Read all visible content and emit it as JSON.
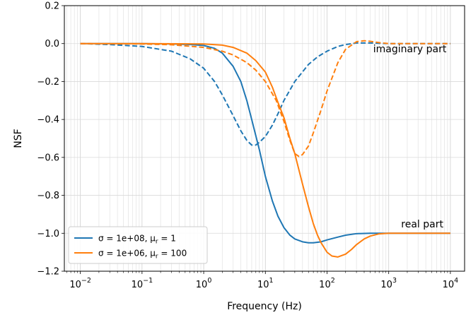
{
  "chart_data": {
    "type": "line",
    "xscale": "log",
    "xlim": [
      0.0055,
      17000
    ],
    "ylim": [
      -1.2,
      0.2
    ],
    "xlabel": "Frequency (Hz)",
    "ylabel": "NSF",
    "grid": true,
    "legend_position": "bottom-left",
    "x_ticks": [
      {
        "value": 0.01,
        "base": "10",
        "exp": "−2"
      },
      {
        "value": 0.1,
        "base": "10",
        "exp": "−1"
      },
      {
        "value": 1,
        "base": "10",
        "exp": "0"
      },
      {
        "value": 10,
        "base": "10",
        "exp": "1"
      },
      {
        "value": 100,
        "base": "10",
        "exp": "2"
      },
      {
        "value": 1000,
        "base": "10",
        "exp": "3"
      },
      {
        "value": 10000,
        "base": "10",
        "exp": "4"
      }
    ],
    "y_ticks": [
      {
        "value": 0.2,
        "label": "0.2"
      },
      {
        "value": 0.0,
        "label": "0.0"
      },
      {
        "value": -0.2,
        "label": "−0.2"
      },
      {
        "value": -0.4,
        "label": "−0.4"
      },
      {
        "value": -0.6,
        "label": "−0.6"
      },
      {
        "value": -0.8,
        "label": "−0.8"
      },
      {
        "value": -1.0,
        "label": "−1.0"
      },
      {
        "value": -1.2,
        "label": "−1.2"
      }
    ],
    "annotations": [
      {
        "text": "imaginary part",
        "x": 2200,
        "y": -0.045
      },
      {
        "text": "real part",
        "x": 3500,
        "y": -0.97
      }
    ],
    "series": [
      {
        "name_prefix": "σ = 1e+08, μ",
        "name_sub": "r",
        "name_suffix": " = 1",
        "color": "#1f77b4",
        "real": {
          "style": "solid",
          "x": [
            0.01,
            0.1,
            0.3,
            0.6,
            1,
            1.5,
            2,
            3,
            4,
            5,
            6,
            8,
            10,
            13,
            16,
            20,
            25,
            30,
            40,
            50,
            60,
            80,
            100,
            150,
            200,
            300,
            500,
            1000,
            10000
          ],
          "y": [
            0.0,
            0.0,
            -0.002,
            -0.005,
            -0.01,
            -0.025,
            -0.05,
            -0.12,
            -0.2,
            -0.3,
            -0.4,
            -0.56,
            -0.7,
            -0.83,
            -0.91,
            -0.97,
            -1.01,
            -1.03,
            -1.045,
            -1.05,
            -1.05,
            -1.045,
            -1.035,
            -1.02,
            -1.01,
            -1.002,
            -1.0,
            -1.0,
            -1.0
          ]
        },
        "imag": {
          "style": "dashed",
          "x": [
            0.01,
            0.03,
            0.1,
            0.3,
            0.6,
            1,
            1.5,
            2,
            3,
            4,
            5,
            6,
            7,
            8,
            10,
            13,
            16,
            20,
            30,
            50,
            70,
            100,
            150,
            200,
            300,
            500,
            1000,
            10000
          ],
          "y": [
            0.0,
            -0.005,
            -0.015,
            -0.04,
            -0.08,
            -0.13,
            -0.2,
            -0.27,
            -0.38,
            -0.46,
            -0.51,
            -0.535,
            -0.535,
            -0.52,
            -0.49,
            -0.43,
            -0.37,
            -0.3,
            -0.2,
            -0.11,
            -0.07,
            -0.04,
            -0.015,
            -0.005,
            0.003,
            0.003,
            0.0,
            0.0
          ]
        }
      },
      {
        "name_prefix": "σ = 1e+06, μ",
        "name_sub": "r",
        "name_suffix": " = 100",
        "color": "#ff7f0e",
        "real": {
          "style": "solid",
          "x": [
            0.01,
            0.1,
            1,
            2,
            3,
            5,
            7,
            10,
            13,
            16,
            20,
            25,
            30,
            40,
            50,
            60,
            70,
            80,
            100,
            120,
            150,
            200,
            250,
            300,
            400,
            500,
            700,
            1000,
            10000
          ],
          "y": [
            0.0,
            0.0,
            -0.002,
            -0.008,
            -0.02,
            -0.05,
            -0.09,
            -0.15,
            -0.23,
            -0.31,
            -0.39,
            -0.5,
            -0.58,
            -0.74,
            -0.86,
            -0.95,
            -1.01,
            -1.05,
            -1.1,
            -1.12,
            -1.125,
            -1.11,
            -1.085,
            -1.06,
            -1.03,
            -1.015,
            -1.003,
            -1.0,
            -1.0
          ]
        },
        "imag": {
          "style": "dashed",
          "x": [
            0.01,
            0.1,
            0.3,
            1,
            2,
            3,
            5,
            7,
            10,
            15,
            20,
            25,
            30,
            35,
            40,
            50,
            60,
            80,
            100,
            150,
            200,
            300,
            400,
            500,
            700,
            1000,
            10000
          ],
          "y": [
            0.0,
            -0.002,
            -0.006,
            -0.02,
            -0.04,
            -0.06,
            -0.1,
            -0.14,
            -0.2,
            -0.3,
            -0.41,
            -0.51,
            -0.58,
            -0.595,
            -0.585,
            -0.54,
            -0.47,
            -0.35,
            -0.25,
            -0.1,
            -0.03,
            0.01,
            0.015,
            0.012,
            0.005,
            0.0,
            0.0
          ]
        }
      }
    ]
  }
}
